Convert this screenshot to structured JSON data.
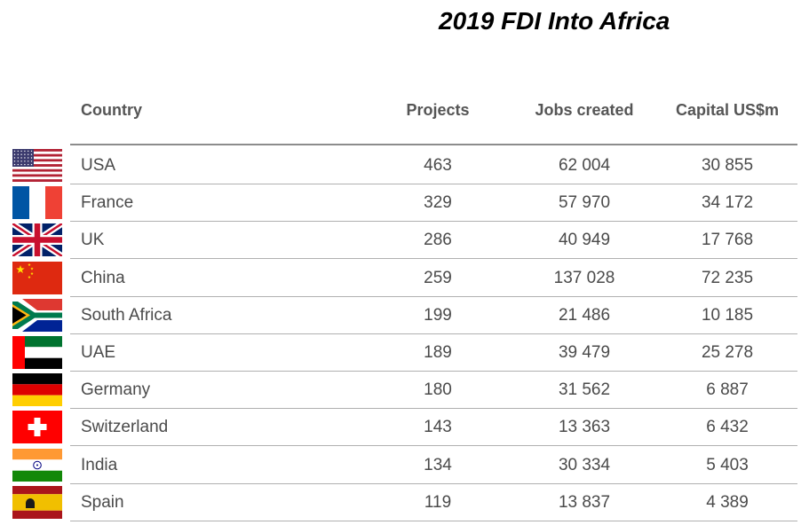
{
  "chart_data": {
    "type": "table",
    "title": "2019 FDI Into Africa",
    "columns": [
      "Country",
      "Projects",
      "Jobs created",
      "Capital US$m"
    ],
    "rows": [
      {
        "country": "USA",
        "projects": "463",
        "jobs": "62 004",
        "capital": "30 855",
        "flag": "usa-flag"
      },
      {
        "country": "France",
        "projects": "329",
        "jobs": "57 970",
        "capital": "34 172",
        "flag": "france-flag"
      },
      {
        "country": "UK",
        "projects": "286",
        "jobs": "40 949",
        "capital": "17 768",
        "flag": "uk-flag"
      },
      {
        "country": "China",
        "projects": "259",
        "jobs": "137 028",
        "capital": "72 235",
        "flag": "china-flag"
      },
      {
        "country": "South Africa",
        "projects": "199",
        "jobs": "21 486",
        "capital": "10 185",
        "flag": "south-africa-flag"
      },
      {
        "country": "UAE",
        "projects": "189",
        "jobs": "39 479",
        "capital": "25 278",
        "flag": "uae-flag"
      },
      {
        "country": "Germany",
        "projects": "180",
        "jobs": "31 562",
        "capital": "6 887",
        "flag": "germany-flag"
      },
      {
        "country": "Switzerland",
        "projects": "143",
        "jobs": "13 363",
        "capital": "6 432",
        "flag": "switzerland-flag"
      },
      {
        "country": "India",
        "projects": "134",
        "jobs": "30 334",
        "capital": "5 403",
        "flag": "india-flag"
      },
      {
        "country": "Spain",
        "projects": "119",
        "jobs": "13 837",
        "capital": "4 389",
        "flag": "spain-flag"
      }
    ]
  }
}
